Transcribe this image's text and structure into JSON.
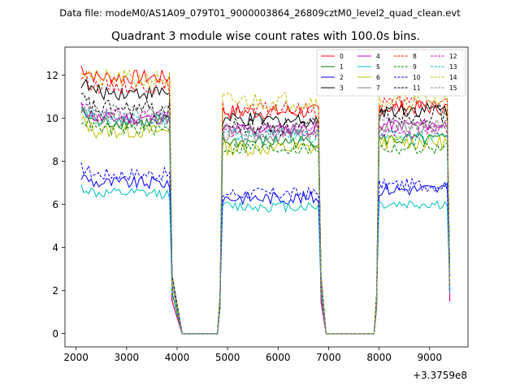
{
  "header_text": "Data file: modeM0/AS1A09_079T01_9000003864_26809cztM0_level2_quad_clean.evt",
  "chart_data": {
    "type": "line",
    "title": "Quadrant 3 module wise count rates with 100.0s bins.",
    "xlabel": "",
    "ylabel": "",
    "x_offset_label": "+3.3759e8",
    "xlim": [
      1780,
      9760
    ],
    "ylim": [
      -0.62,
      13.3
    ],
    "xticks": [
      2000,
      3000,
      4000,
      5000,
      6000,
      7000,
      8000,
      9000
    ],
    "yticks": [
      0,
      2,
      4,
      6,
      8,
      10,
      12
    ],
    "grid": false,
    "legend_position": "top-right",
    "x_unit_note": "x values are offsets from 3.3759e8",
    "segments": [
      {
        "start": 2100,
        "step": 50,
        "count": 37
      },
      {
        "start": 4850,
        "step": 50,
        "count": 41
      },
      {
        "start": 7950,
        "step": 50,
        "count": 30
      }
    ],
    "gaps_zero": [
      {
        "x": [
          4100,
          4800
        ]
      },
      {
        "x": [
          6950,
          7900
        ]
      }
    ],
    "series": [
      {
        "name": "0",
        "color": "#ff0000",
        "dash": "solid",
        "levels": [
          11.9,
          10.3,
          10.5
        ],
        "amp": 0.35
      },
      {
        "name": "1",
        "color": "#008000",
        "dash": "solid",
        "levels": [
          9.8,
          8.9,
          9.0
        ],
        "amp": 0.3
      },
      {
        "name": "2",
        "color": "#0000ff",
        "dash": "solid",
        "levels": [
          7.0,
          6.3,
          6.7
        ],
        "amp": 0.3
      },
      {
        "name": "3",
        "color": "#000000",
        "dash": "solid",
        "levels": [
          11.2,
          9.9,
          10.4
        ],
        "amp": 0.35
      },
      {
        "name": "4",
        "color": "#bf00bf",
        "dash": "solid",
        "levels": [
          10.0,
          9.5,
          9.7
        ],
        "amp": 0.3
      },
      {
        "name": "5",
        "color": "#00bfbf",
        "dash": "solid",
        "levels": [
          6.5,
          5.9,
          6.0
        ],
        "amp": 0.25
      },
      {
        "name": "6",
        "color": "#bfbf00",
        "dash": "solid",
        "levels": [
          9.4,
          8.6,
          8.9
        ],
        "amp": 0.35
      },
      {
        "name": "7",
        "color": "#808080",
        "dash": "solid",
        "levels": [
          9.9,
          9.2,
          9.5
        ],
        "amp": 0.3
      },
      {
        "name": "8",
        "color": "#ff0000",
        "dash": "dashed",
        "levels": [
          11.5,
          10.4,
          10.7
        ],
        "amp": 0.35
      },
      {
        "name": "9",
        "color": "#008000",
        "dash": "dashed",
        "levels": [
          9.5,
          8.6,
          8.6
        ],
        "amp": 0.3
      },
      {
        "name": "10",
        "color": "#0000ff",
        "dash": "dashed",
        "levels": [
          7.4,
          6.5,
          6.9
        ],
        "amp": 0.3
      },
      {
        "name": "11",
        "color": "#000000",
        "dash": "dashed",
        "levels": [
          10.4,
          9.6,
          10.2
        ],
        "amp": 0.45
      },
      {
        "name": "12",
        "color": "#bf00bf",
        "dash": "dashed",
        "levels": [
          10.1,
          9.4,
          9.4
        ],
        "amp": 0.35
      },
      {
        "name": "13",
        "color": "#00bfbf",
        "dash": "dashed",
        "levels": [
          10.0,
          9.2,
          9.1
        ],
        "amp": 0.35
      },
      {
        "name": "14",
        "color": "#bfbf00",
        "dash": "dashed",
        "levels": [
          11.8,
          10.8,
          10.8
        ],
        "amp": 0.45
      },
      {
        "name": "15",
        "color": "#808080",
        "dash": "dashed",
        "levels": [
          10.3,
          9.4,
          9.7
        ],
        "amp": 0.35
      }
    ]
  }
}
